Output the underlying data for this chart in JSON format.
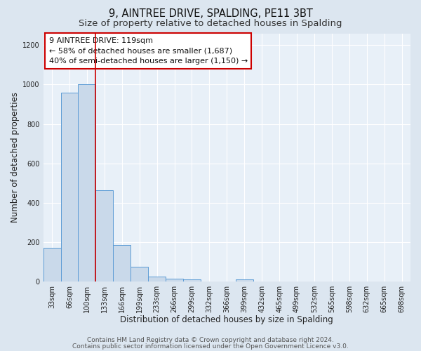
{
  "title_line1": "9, AINTREE DRIVE, SPALDING, PE11 3BT",
  "title_line2": "Size of property relative to detached houses in Spalding",
  "xlabel": "Distribution of detached houses by size in Spalding",
  "ylabel": "Number of detached properties",
  "bar_labels": [
    "33sqm",
    "66sqm",
    "100sqm",
    "133sqm",
    "166sqm",
    "199sqm",
    "233sqm",
    "266sqm",
    "299sqm",
    "332sqm",
    "366sqm",
    "399sqm",
    "432sqm",
    "465sqm",
    "499sqm",
    "532sqm",
    "565sqm",
    "598sqm",
    "632sqm",
    "665sqm",
    "698sqm"
  ],
  "bar_values": [
    170,
    960,
    1000,
    465,
    185,
    75,
    25,
    15,
    12,
    0,
    0,
    10,
    0,
    0,
    0,
    0,
    0,
    0,
    0,
    0,
    0
  ],
  "bar_color": "#c9d9ea",
  "bar_edge_color": "#5b9bd5",
  "vline_color": "#cc0000",
  "vline_x": 2.5,
  "annotation_title": "9 AINTREE DRIVE: 119sqm",
  "annotation_line1": "← 58% of detached houses are smaller (1,687)",
  "annotation_line2": "40% of semi-detached houses are larger (1,150) →",
  "annotation_box_color": "#ffffff",
  "annotation_box_edgecolor": "#cc0000",
  "ylim": [
    0,
    1260
  ],
  "yticks": [
    0,
    200,
    400,
    600,
    800,
    1000,
    1200
  ],
  "background_color": "#dce6f0",
  "plot_background_color": "#e8f0f8",
  "grid_color": "#ffffff",
  "title_fontsize": 10.5,
  "subtitle_fontsize": 9.5,
  "axis_label_fontsize": 8.5,
  "tick_fontsize": 7,
  "annotation_fontsize": 8,
  "footer_fontsize": 6.5,
  "footer_line1": "Contains HM Land Registry data © Crown copyright and database right 2024.",
  "footer_line2": "Contains public sector information licensed under the Open Government Licence v3.0."
}
